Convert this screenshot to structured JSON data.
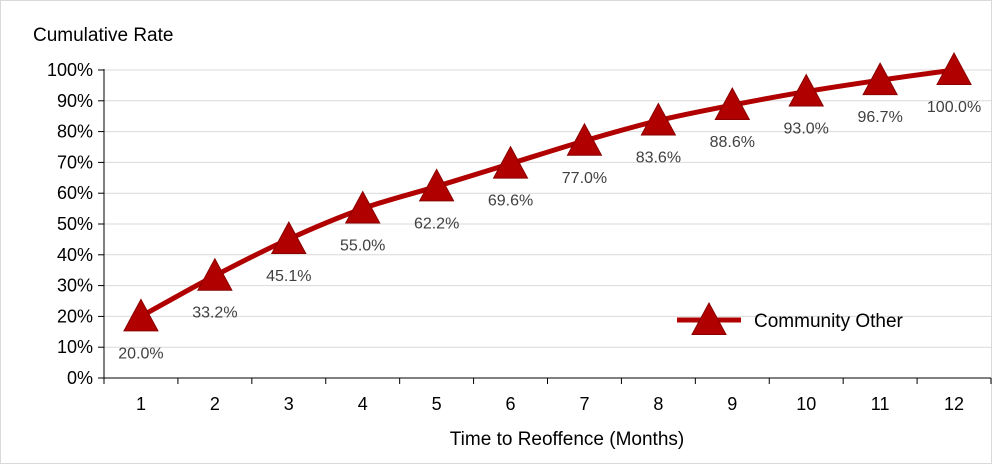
{
  "chart_data": {
    "type": "line",
    "ylabel": "Cumulative Rate",
    "xlabel": "Time to Reoffence (Months)",
    "categories": [
      "1",
      "2",
      "3",
      "4",
      "5",
      "6",
      "7",
      "8",
      "9",
      "10",
      "11",
      "12"
    ],
    "y_ticks": [
      "0%",
      "10%",
      "20%",
      "30%",
      "40%",
      "50%",
      "60%",
      "70%",
      "80%",
      "90%",
      "100%"
    ],
    "ylim": [
      0,
      100
    ],
    "grid": true,
    "legend_position": "bottom-right",
    "series": [
      {
        "name": "Community Other",
        "values": [
          20.0,
          33.2,
          45.1,
          55.0,
          62.2,
          69.6,
          77.0,
          83.6,
          88.6,
          93.0,
          96.7,
          100.0
        ],
        "labels": [
          "20.0%",
          "33.2%",
          "45.1%",
          "55.0%",
          "62.2%",
          "69.6%",
          "77.0%",
          "83.6%",
          "88.6%",
          "93.0%",
          "96.7%",
          "100.0%"
        ],
        "color": "#b00000",
        "marker": "triangle"
      }
    ]
  }
}
